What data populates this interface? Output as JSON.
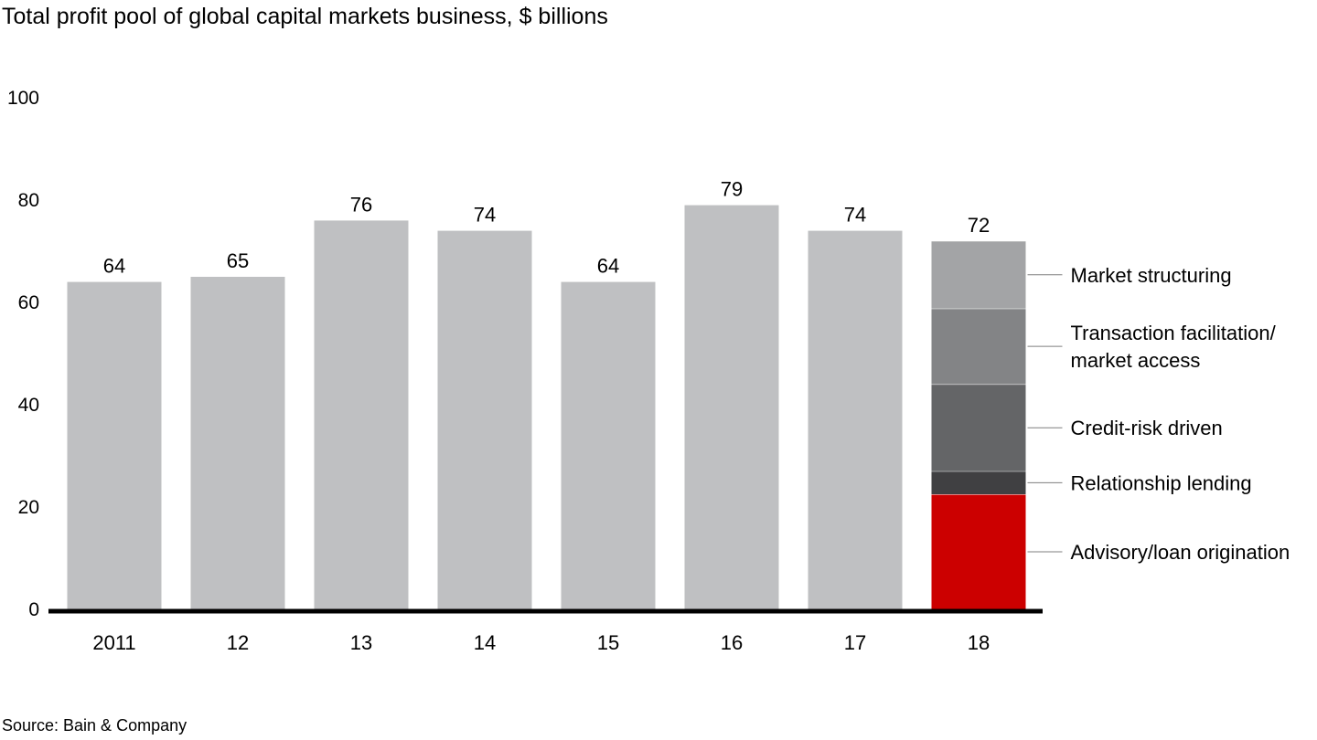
{
  "title": "Total profit pool of global capital markets business, $ billions",
  "source": "Source: Bain & Company",
  "chart_data": {
    "type": "bar",
    "title": "Total profit pool of global capital markets business, $ billions",
    "xlabel": "",
    "ylabel": "",
    "ylim": [
      0,
      100
    ],
    "yticks": [
      0,
      20,
      40,
      60,
      80,
      100
    ],
    "grid": false,
    "categories": [
      "2011",
      "12",
      "13",
      "14",
      "15",
      "16",
      "17",
      "18"
    ],
    "values": [
      64,
      65,
      76,
      74,
      64,
      79,
      74,
      72
    ],
    "value_labels": [
      "64",
      "65",
      "76",
      "74",
      "64",
      "79",
      "74",
      "72"
    ],
    "bar_color": "#bfc0c2",
    "stacked_breakdown": {
      "category": "18",
      "segments": [
        {
          "name": "Advisory/loan origination",
          "value": 22.5,
          "color": "#cc0000"
        },
        {
          "name": "Relationship lending",
          "value": 4.5,
          "color": "#404042"
        },
        {
          "name": "Credit-risk driven",
          "value": 17,
          "color": "#646567"
        },
        {
          "name": "Transaction facilitation/\nmarket access",
          "value": 14.8,
          "color": "#838486"
        },
        {
          "name": "Market structuring",
          "value": 13.2,
          "color": "#a3a4a6"
        }
      ]
    },
    "axis_color": "#000000",
    "leader_line_color": "#7f7f7f"
  }
}
